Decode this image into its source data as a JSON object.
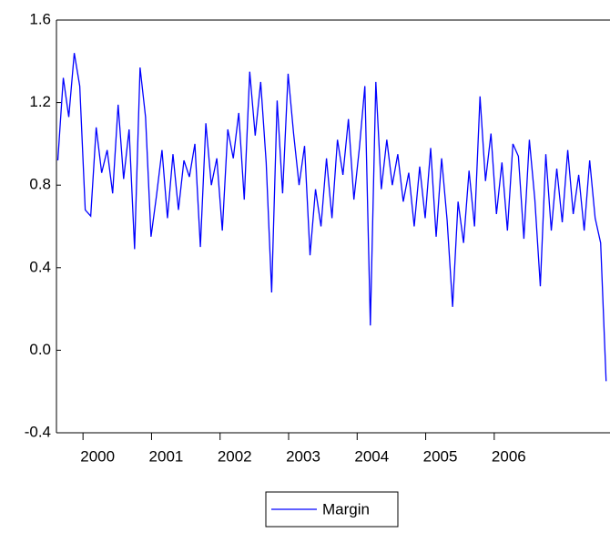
{
  "chart_data": {
    "type": "line",
    "series": [
      {
        "name": "Margin",
        "color": "#0000ff",
        "values": [
          0.92,
          1.32,
          1.13,
          1.44,
          1.28,
          0.68,
          0.65,
          1.08,
          0.86,
          0.97,
          0.76,
          1.19,
          0.83,
          1.07,
          0.49,
          1.37,
          1.13,
          0.55,
          0.75,
          0.97,
          0.64,
          0.95,
          0.68,
          0.92,
          0.84,
          1.0,
          0.5,
          1.1,
          0.8,
          0.93,
          0.58,
          1.07,
          0.93,
          1.15,
          0.73,
          1.35,
          1.04,
          1.3,
          0.91,
          0.28,
          1.21,
          0.76,
          1.34,
          1.05,
          0.8,
          0.99,
          0.46,
          0.78,
          0.6,
          0.93,
          0.64,
          1.02,
          0.85,
          1.12,
          0.73,
          0.98,
          1.28,
          0.12,
          1.3,
          0.78,
          1.02,
          0.8,
          0.95,
          0.72,
          0.86,
          0.6,
          0.89,
          0.64,
          0.98,
          0.55,
          0.93,
          0.63,
          0.21,
          0.72,
          0.52,
          0.87,
          0.6,
          1.23,
          0.82,
          1.05,
          0.66,
          0.91,
          0.58,
          1.0,
          0.94,
          0.54,
          1.02,
          0.73,
          0.31,
          0.95,
          0.58,
          0.88,
          0.62,
          0.97,
          0.66,
          0.85,
          0.58,
          0.92,
          0.64,
          0.52,
          -0.15
        ]
      }
    ],
    "x": [
      1999.42,
      1999.5,
      1999.58,
      1999.66,
      1999.74,
      1999.82,
      1999.9,
      1999.98,
      2000.06,
      2000.14,
      2000.22,
      2000.3,
      2000.38,
      2000.46,
      2000.54,
      2000.62,
      2000.7,
      2000.78,
      2000.86,
      2000.94,
      2001.02,
      2001.1,
      2001.18,
      2001.26,
      2001.34,
      2001.42,
      2001.5,
      2001.58,
      2001.66,
      2001.74,
      2001.82,
      2001.9,
      2001.98,
      2002.06,
      2002.14,
      2002.22,
      2002.3,
      2002.38,
      2002.46,
      2002.54,
      2002.62,
      2002.7,
      2002.78,
      2002.86,
      2002.94,
      2003.02,
      2003.1,
      2003.18,
      2003.26,
      2003.34,
      2003.42,
      2003.5,
      2003.58,
      2003.66,
      2003.74,
      2003.82,
      2003.9,
      2003.98,
      2004.06,
      2004.14,
      2004.22,
      2004.3,
      2004.38,
      2004.46,
      2004.54,
      2004.62,
      2004.7,
      2004.78,
      2004.86,
      2004.94,
      2005.02,
      2005.1,
      2005.18,
      2005.26,
      2005.34,
      2005.42,
      2005.5,
      2005.58,
      2005.66,
      2005.74,
      2005.82,
      2005.9,
      2005.98,
      2006.06,
      2006.14,
      2006.22,
      2006.3,
      2006.38,
      2006.46,
      2006.54,
      2006.62,
      2006.7,
      2006.78,
      2006.86,
      2006.94,
      2007.02,
      2007.1,
      2007.18,
      2007.26,
      2007.34,
      2007.42
    ],
    "xlim": [
      1999.4,
      2007.45
    ],
    "xticks": [
      2000,
      2001,
      2002,
      2003,
      2004,
      2005,
      2006
    ],
    "ylim": [
      -0.4,
      1.6
    ],
    "yticks": [
      -0.4,
      {
        "value": 0,
        "label": "0.0"
      },
      0.4,
      0.8,
      1.2,
      1.6
    ],
    "legend": "bottom"
  }
}
